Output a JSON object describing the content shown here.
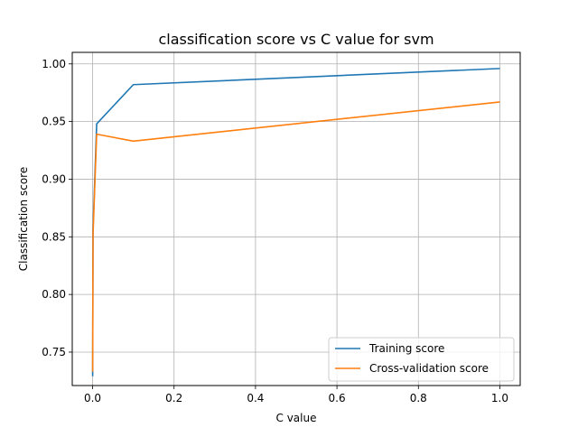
{
  "chart_data": {
    "type": "line",
    "title": "classification score vs C value for svm",
    "xlabel": "C value",
    "ylabel": "Classification score",
    "xlim": [
      -0.05,
      1.05
    ],
    "ylim": [
      0.721,
      1.01
    ],
    "xticks": [
      0.0,
      0.2,
      0.4,
      0.6,
      0.8,
      1.0
    ],
    "xtick_labels": [
      "0.0",
      "0.2",
      "0.4",
      "0.6",
      "0.8",
      "1.0"
    ],
    "yticks": [
      0.75,
      0.8,
      0.85,
      0.9,
      0.95,
      1.0
    ],
    "ytick_labels": [
      "0.75",
      "0.80",
      "0.85",
      "0.90",
      "0.95",
      "1.00"
    ],
    "grid": true,
    "legend_position": "lower-right",
    "series": [
      {
        "name": "Training score",
        "color": "#1f77b4",
        "x": [
          0.0001,
          0.001,
          0.01,
          0.1,
          1.0
        ],
        "y": [
          0.729,
          0.856,
          0.948,
          0.982,
          0.996
        ]
      },
      {
        "name": "Cross-validation score",
        "color": "#ff7f0e",
        "x": [
          0.0001,
          0.001,
          0.01,
          0.1,
          1.0
        ],
        "y": [
          0.733,
          0.852,
          0.939,
          0.933,
          0.967
        ]
      }
    ]
  }
}
